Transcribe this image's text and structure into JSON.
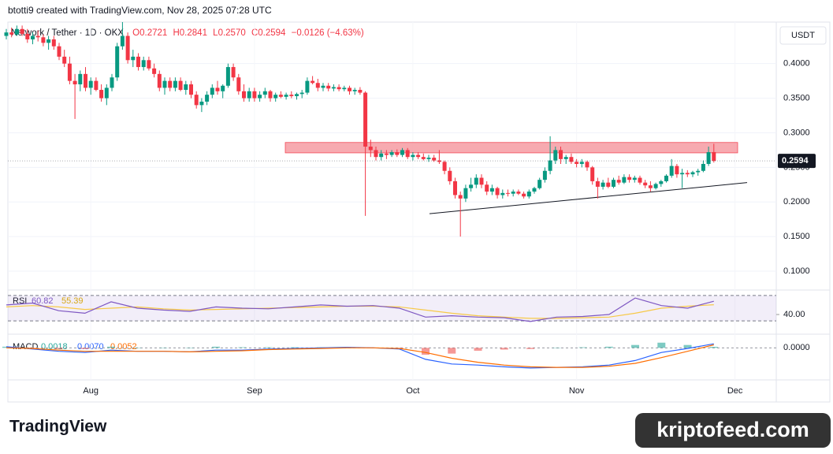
{
  "header": "btotti9 created with TradingView.com, Nov 28, 2025 07:28 UTC",
  "chart_data": {
    "type": "candlestick",
    "legend": {
      "symbol": "Network / Tether · 1D · OKX",
      "open": "O0.2721",
      "high": "H0.2841",
      "low": "L0.2570",
      "close": "C0.2594",
      "change": "−0.0126 (−4.63%)"
    },
    "currency": "USDT",
    "colors": {
      "up": "#089981",
      "down": "#f23645"
    },
    "ohlc": [
      [
        0.44,
        0.45,
        0.435,
        0.445
      ],
      [
        0.445,
        0.452,
        0.438,
        0.442
      ],
      [
        0.442,
        0.455,
        0.44,
        0.45
      ],
      [
        0.45,
        0.455,
        0.44,
        0.443
      ],
      [
        0.443,
        0.45,
        0.43,
        0.435
      ],
      [
        0.435,
        0.445,
        0.428,
        0.44
      ],
      [
        0.44,
        0.448,
        0.432,
        0.438
      ],
      [
        0.438,
        0.442,
        0.425,
        0.43
      ],
      [
        0.43,
        0.44,
        0.42,
        0.435
      ],
      [
        0.435,
        0.44,
        0.42,
        0.425
      ],
      [
        0.425,
        0.43,
        0.405,
        0.41
      ],
      [
        0.41,
        0.42,
        0.395,
        0.4
      ],
      [
        0.4,
        0.41,
        0.37,
        0.375
      ],
      [
        0.375,
        0.385,
        0.32,
        0.37
      ],
      [
        0.37,
        0.39,
        0.36,
        0.385
      ],
      [
        0.385,
        0.395,
        0.36,
        0.365
      ],
      [
        0.365,
        0.38,
        0.355,
        0.375
      ],
      [
        0.375,
        0.38,
        0.36,
        0.362
      ],
      [
        0.362,
        0.37,
        0.345,
        0.35
      ],
      [
        0.35,
        0.37,
        0.34,
        0.365
      ],
      [
        0.365,
        0.385,
        0.36,
        0.38
      ],
      [
        0.38,
        0.43,
        0.375,
        0.425
      ],
      [
        0.425,
        0.46,
        0.42,
        0.44
      ],
      [
        0.44,
        0.445,
        0.4,
        0.405
      ],
      [
        0.405,
        0.42,
        0.395,
        0.41
      ],
      [
        0.41,
        0.415,
        0.39,
        0.395
      ],
      [
        0.395,
        0.41,
        0.39,
        0.405
      ],
      [
        0.405,
        0.41,
        0.39,
        0.393
      ],
      [
        0.393,
        0.4,
        0.38,
        0.385
      ],
      [
        0.385,
        0.39,
        0.36,
        0.365
      ],
      [
        0.365,
        0.38,
        0.355,
        0.375
      ],
      [
        0.375,
        0.38,
        0.36,
        0.365
      ],
      [
        0.365,
        0.38,
        0.36,
        0.375
      ],
      [
        0.375,
        0.38,
        0.36,
        0.362
      ],
      [
        0.362,
        0.375,
        0.355,
        0.37
      ],
      [
        0.37,
        0.375,
        0.35,
        0.355
      ],
      [
        0.355,
        0.36,
        0.335,
        0.34
      ],
      [
        0.34,
        0.35,
        0.33,
        0.345
      ],
      [
        0.345,
        0.36,
        0.34,
        0.355
      ],
      [
        0.355,
        0.37,
        0.35,
        0.365
      ],
      [
        0.365,
        0.375,
        0.355,
        0.36
      ],
      [
        0.36,
        0.37,
        0.35,
        0.368
      ],
      [
        0.368,
        0.4,
        0.365,
        0.395
      ],
      [
        0.395,
        0.4,
        0.375,
        0.38
      ],
      [
        0.38,
        0.385,
        0.355,
        0.36
      ],
      [
        0.36,
        0.37,
        0.345,
        0.35
      ],
      [
        0.35,
        0.365,
        0.345,
        0.36
      ],
      [
        0.36,
        0.365,
        0.345,
        0.35
      ],
      [
        0.35,
        0.36,
        0.345,
        0.355
      ],
      [
        0.355,
        0.365,
        0.35,
        0.36
      ],
      [
        0.36,
        0.362,
        0.345,
        0.35
      ],
      [
        0.35,
        0.358,
        0.345,
        0.355
      ],
      [
        0.355,
        0.36,
        0.35,
        0.352
      ],
      [
        0.352,
        0.358,
        0.348,
        0.355
      ],
      [
        0.355,
        0.36,
        0.35,
        0.353
      ],
      [
        0.353,
        0.358,
        0.348,
        0.356
      ],
      [
        0.356,
        0.362,
        0.35,
        0.358
      ],
      [
        0.358,
        0.38,
        0.355,
        0.375
      ],
      [
        0.375,
        0.382,
        0.37,
        0.372
      ],
      [
        0.372,
        0.378,
        0.36,
        0.365
      ],
      [
        0.365,
        0.372,
        0.36,
        0.368
      ],
      [
        0.368,
        0.372,
        0.36,
        0.364
      ],
      [
        0.364,
        0.37,
        0.36,
        0.366
      ],
      [
        0.366,
        0.37,
        0.36,
        0.363
      ],
      [
        0.363,
        0.368,
        0.36,
        0.365
      ],
      [
        0.365,
        0.368,
        0.355,
        0.36
      ],
      [
        0.36,
        0.365,
        0.355,
        0.362
      ],
      [
        0.362,
        0.366,
        0.355,
        0.358
      ],
      [
        0.358,
        0.36,
        0.18,
        0.28
      ],
      [
        0.28,
        0.29,
        0.265,
        0.275
      ],
      [
        0.275,
        0.28,
        0.26,
        0.265
      ],
      [
        0.265,
        0.275,
        0.26,
        0.27
      ],
      [
        0.27,
        0.275,
        0.262,
        0.268
      ],
      [
        0.268,
        0.275,
        0.265,
        0.272
      ],
      [
        0.272,
        0.276,
        0.265,
        0.268
      ],
      [
        0.268,
        0.278,
        0.265,
        0.275
      ],
      [
        0.275,
        0.278,
        0.262,
        0.265
      ],
      [
        0.265,
        0.272,
        0.26,
        0.268
      ],
      [
        0.268,
        0.272,
        0.262,
        0.265
      ],
      [
        0.265,
        0.27,
        0.26,
        0.262
      ],
      [
        0.262,
        0.268,
        0.258,
        0.264
      ],
      [
        0.264,
        0.268,
        0.258,
        0.26
      ],
      [
        0.26,
        0.275,
        0.255,
        0.258
      ],
      [
        0.258,
        0.26,
        0.24,
        0.245
      ],
      [
        0.245,
        0.25,
        0.225,
        0.23
      ],
      [
        0.23,
        0.235,
        0.205,
        0.21
      ],
      [
        0.21,
        0.215,
        0.15,
        0.205
      ],
      [
        0.205,
        0.225,
        0.2,
        0.22
      ],
      [
        0.22,
        0.235,
        0.215,
        0.225
      ],
      [
        0.225,
        0.24,
        0.22,
        0.235
      ],
      [
        0.235,
        0.24,
        0.22,
        0.225
      ],
      [
        0.225,
        0.23,
        0.21,
        0.215
      ],
      [
        0.215,
        0.225,
        0.21,
        0.22
      ],
      [
        0.22,
        0.222,
        0.205,
        0.21
      ],
      [
        0.21,
        0.218,
        0.205,
        0.213
      ],
      [
        0.213,
        0.218,
        0.208,
        0.212
      ],
      [
        0.212,
        0.218,
        0.208,
        0.215
      ],
      [
        0.215,
        0.218,
        0.21,
        0.212
      ],
      [
        0.212,
        0.215,
        0.205,
        0.208
      ],
      [
        0.208,
        0.218,
        0.205,
        0.215
      ],
      [
        0.215,
        0.222,
        0.212,
        0.22
      ],
      [
        0.22,
        0.235,
        0.218,
        0.232
      ],
      [
        0.232,
        0.25,
        0.228,
        0.245
      ],
      [
        0.245,
        0.295,
        0.24,
        0.26
      ],
      [
        0.26,
        0.28,
        0.255,
        0.275
      ],
      [
        0.275,
        0.28,
        0.255,
        0.262
      ],
      [
        0.262,
        0.268,
        0.255,
        0.265
      ],
      [
        0.265,
        0.27,
        0.255,
        0.258
      ],
      [
        0.258,
        0.262,
        0.25,
        0.255
      ],
      [
        0.255,
        0.262,
        0.25,
        0.258
      ],
      [
        0.258,
        0.26,
        0.245,
        0.25
      ],
      [
        0.25,
        0.252,
        0.225,
        0.23
      ],
      [
        0.23,
        0.235,
        0.205,
        0.222
      ],
      [
        0.222,
        0.232,
        0.218,
        0.228
      ],
      [
        0.228,
        0.235,
        0.22,
        0.222
      ],
      [
        0.222,
        0.235,
        0.22,
        0.232
      ],
      [
        0.232,
        0.238,
        0.225,
        0.228
      ],
      [
        0.228,
        0.24,
        0.226,
        0.236
      ],
      [
        0.236,
        0.24,
        0.228,
        0.232
      ],
      [
        0.232,
        0.238,
        0.228,
        0.235
      ],
      [
        0.235,
        0.238,
        0.225,
        0.228
      ],
      [
        0.228,
        0.232,
        0.22,
        0.224
      ],
      [
        0.224,
        0.23,
        0.215,
        0.22
      ],
      [
        0.22,
        0.228,
        0.218,
        0.226
      ],
      [
        0.226,
        0.232,
        0.222,
        0.23
      ],
      [
        0.23,
        0.24,
        0.228,
        0.238
      ],
      [
        0.238,
        0.262,
        0.235,
        0.252
      ],
      [
        0.252,
        0.255,
        0.235,
        0.24
      ],
      [
        0.24,
        0.248,
        0.22,
        0.242
      ],
      [
        0.242,
        0.246,
        0.236,
        0.24
      ],
      [
        0.24,
        0.245,
        0.236,
        0.243
      ],
      [
        0.243,
        0.248,
        0.238,
        0.245
      ],
      [
        0.245,
        0.26,
        0.243,
        0.255
      ],
      [
        0.255,
        0.28,
        0.252,
        0.272
      ],
      [
        0.2721,
        0.2841,
        0.257,
        0.2594
      ]
    ],
    "ylim": [
      0.075,
      0.46
    ],
    "yticks": [
      {
        "value": 0.1,
        "label": "0.1000"
      },
      {
        "value": 0.15,
        "label": "0.1500"
      },
      {
        "value": 0.2,
        "label": "0.2000"
      },
      {
        "value": 0.25,
        "label": "0.2500"
      },
      {
        "value": 0.3,
        "label": "0.3000"
      },
      {
        "value": 0.35,
        "label": "0.3500"
      },
      {
        "value": 0.4,
        "label": "0.4000"
      }
    ],
    "xticks": [
      {
        "value": 16,
        "label": "Aug"
      },
      {
        "value": 47,
        "label": "Sep"
      },
      {
        "value": 77,
        "label": "Oct"
      },
      {
        "value": 108,
        "label": "Nov"
      },
      {
        "value": 138,
        "label": "Dec"
      }
    ],
    "resistance_zone": [
      0.271,
      0.286
    ],
    "trendline": [
      0.183,
      0.228
    ],
    "rsi": {
      "title": "RSI",
      "ylim": [
        14,
        76
      ],
      "band": [
        30,
        70
      ],
      "yticks": [
        {
          "value": 40,
          "label": "40.00"
        }
      ],
      "series": [
        {
          "name": "60.82",
          "color": "#7e57c2",
          "values": [
            55,
            58,
            46,
            42,
            60,
            50,
            47,
            45,
            52,
            50,
            49,
            52,
            55,
            53,
            54,
            50,
            36,
            38,
            36,
            35,
            29,
            36,
            37,
            40,
            66,
            54,
            50,
            60.82
          ]
        },
        {
          "name": "55.39",
          "color": "#f7c948",
          "values": [
            52,
            54,
            52,
            48,
            50,
            52,
            49,
            47,
            48,
            49,
            50,
            51,
            52,
            53,
            53,
            52,
            47,
            42,
            38,
            36,
            34,
            34,
            35,
            36,
            42,
            50,
            53,
            55.39
          ]
        }
      ]
    },
    "macd": {
      "title": "MACD",
      "ylim": [
        -0.053,
        0.021
      ],
      "yticks": [
        {
          "value": 0,
          "label": "0.0000"
        }
      ],
      "histogram": {
        "name": "0.0018",
        "values": [
          0.002,
          -0.001,
          -0.002,
          -0.002,
          0.002,
          0,
          0,
          0,
          0.002,
          0.001,
          0.001,
          0.001,
          0.001,
          0.001,
          0,
          -0.001,
          -0.012,
          -0.01,
          -0.005,
          -0.003,
          -0.002,
          0,
          0.001,
          0.002,
          0.005,
          0.009,
          0.005,
          0.0018
        ]
      },
      "series": [
        {
          "name": "0.0070",
          "color": "#2962ff",
          "values": [
            0.002,
            -0.002,
            -0.006,
            -0.008,
            -0.004,
            -0.006,
            -0.006,
            -0.007,
            -0.004,
            -0.004,
            -0.002,
            -0.001,
            0,
            0.001,
            0,
            -0.002,
            -0.02,
            -0.028,
            -0.03,
            -0.033,
            -0.035,
            -0.034,
            -0.033,
            -0.03,
            -0.022,
            -0.008,
            -0.001,
            0.007
          ]
        },
        {
          "name": "0.0052",
          "color": "#ff6d00",
          "values": [
            0,
            -0.001,
            -0.004,
            -0.006,
            -0.006,
            -0.006,
            -0.006,
            -0.007,
            -0.006,
            -0.005,
            -0.003,
            -0.002,
            -0.001,
            0,
            0,
            -0.001,
            -0.008,
            -0.018,
            -0.025,
            -0.03,
            -0.033,
            -0.034,
            -0.034,
            -0.032,
            -0.027,
            -0.017,
            -0.006,
            0.0052
          ]
        }
      ]
    }
  },
  "footer": {
    "brand": "TradingView",
    "watermark": "kriptofeed.com"
  }
}
